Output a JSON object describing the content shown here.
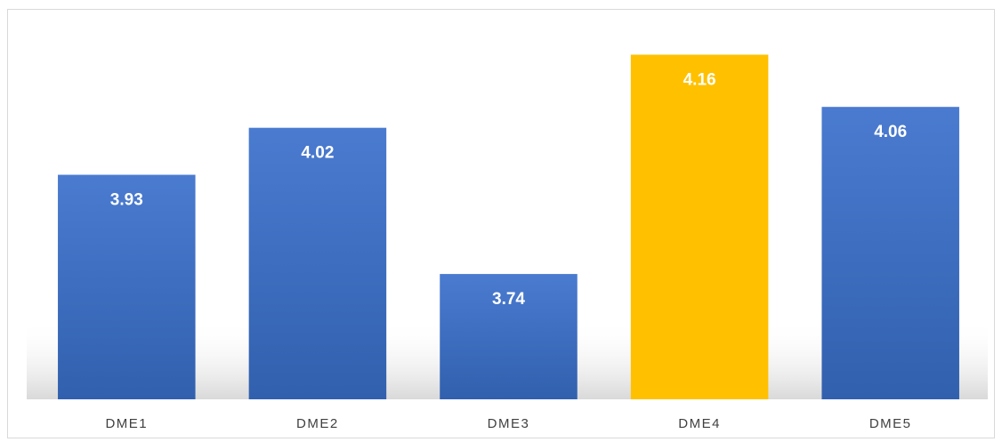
{
  "chart_data": {
    "type": "bar",
    "categories": [
      "DME1",
      "DME2",
      "DME3",
      "DME4",
      "DME5"
    ],
    "values": [
      3.93,
      4.02,
      3.74,
      4.16,
      4.06
    ],
    "colors": [
      "#4472c4",
      "#4472c4",
      "#4472c4",
      "#ffc000",
      "#4472c4"
    ],
    "ylim": [
      3.5,
      4.2
    ]
  }
}
